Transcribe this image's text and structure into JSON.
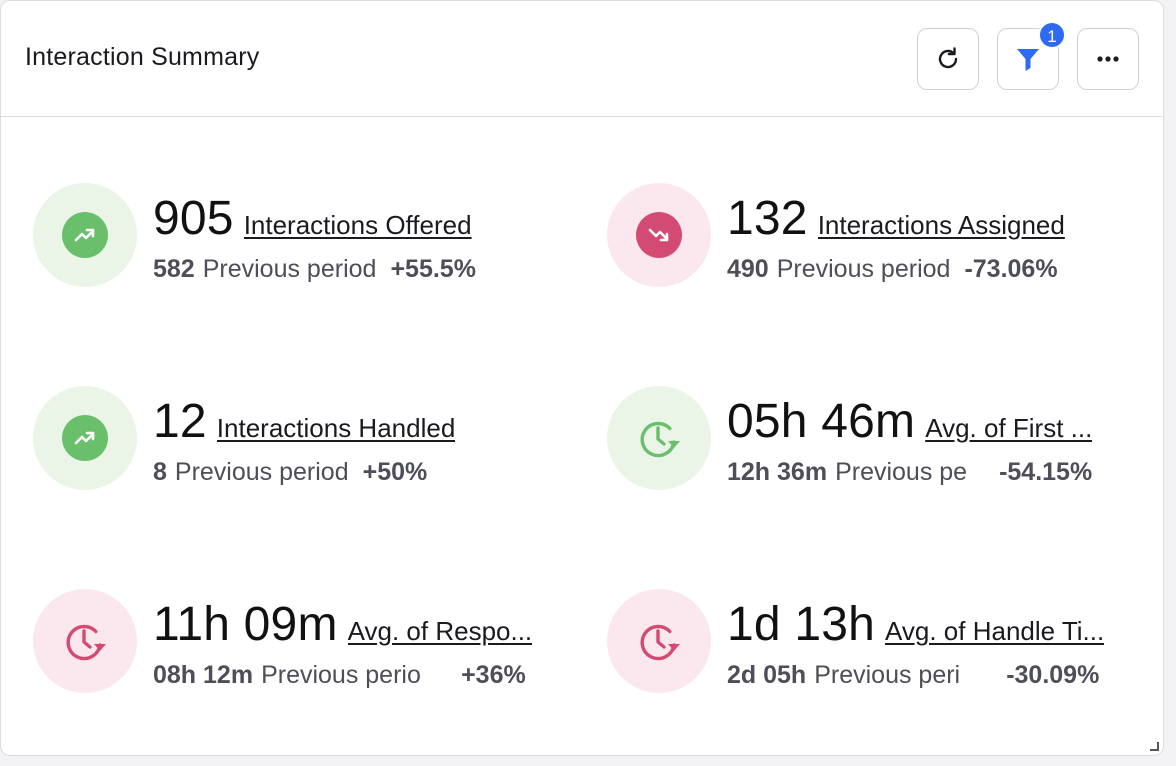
{
  "widget": {
    "title": "Interaction Summary",
    "filter_badge": "1",
    "icons": {
      "refresh": "refresh-icon",
      "filter": "filter-icon",
      "more": "more-icon"
    },
    "colors": {
      "up_bg": "#eaf5e8",
      "up_fg": "#6abf6b",
      "down_bg": "#fbe8ee",
      "down_fg": "#d34a72",
      "badge": "#2f6bf0"
    }
  },
  "metrics": [
    {
      "value": "905",
      "label": "Interactions Offered",
      "prev_value": "582",
      "prev_text": "Previous period",
      "delta": "+55.5%",
      "icon": "trend-up-icon",
      "tone": "up"
    },
    {
      "value": "132",
      "label": "Interactions Assigned",
      "prev_value": "490",
      "prev_text": "Previous period",
      "delta": "-73.06%",
      "icon": "trend-down-icon",
      "tone": "down"
    },
    {
      "value": "12",
      "label": "Interactions Handled",
      "prev_value": "8",
      "prev_text": "Previous period",
      "delta": "+50%",
      "icon": "trend-up-icon",
      "tone": "up"
    },
    {
      "value": "05h 46m",
      "label": "Avg. of First ...",
      "prev_value": "12h 36m",
      "prev_text": "Previous pe",
      "delta": "-54.15%",
      "icon": "clock-icon",
      "tone": "up"
    },
    {
      "value": "11h 09m",
      "label": "Avg. of Respo...",
      "prev_value": "08h 12m",
      "prev_text": "Previous perio",
      "delta": "+36%",
      "icon": "clock-icon",
      "tone": "down"
    },
    {
      "value": "1d 13h",
      "label": "Avg. of Handle Ti...",
      "prev_value": "2d 05h",
      "prev_text": "Previous peri",
      "delta": "-30.09%",
      "icon": "clock-icon",
      "tone": "down"
    }
  ]
}
